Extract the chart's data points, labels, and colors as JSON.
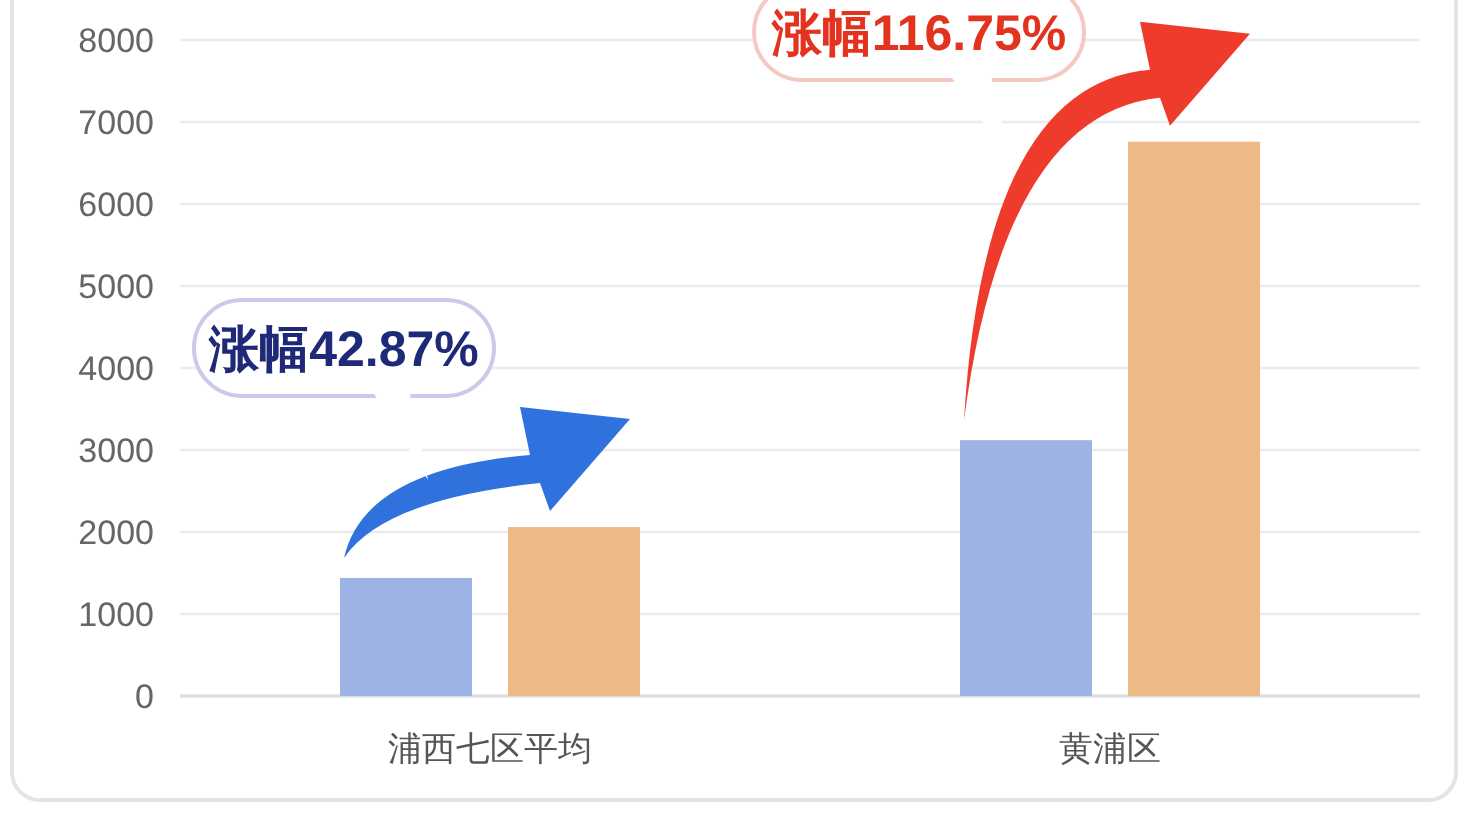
{
  "chart_data": {
    "type": "bar",
    "categories": [
      "浦西七区平均",
      "黄浦区"
    ],
    "series": [
      {
        "color": "#9db3e4",
        "values": [
          1440,
          3120
        ]
      },
      {
        "color": "#edb985",
        "values": [
          2060,
          6760
        ]
      }
    ],
    "ylim": [
      0,
      8000
    ],
    "yticks": [
      0,
      1000,
      2000,
      3000,
      4000,
      5000,
      6000,
      7000,
      8000
    ],
    "grid": "y",
    "annotations": [
      "涨幅42.87%",
      "涨幅116.75%"
    ]
  }
}
